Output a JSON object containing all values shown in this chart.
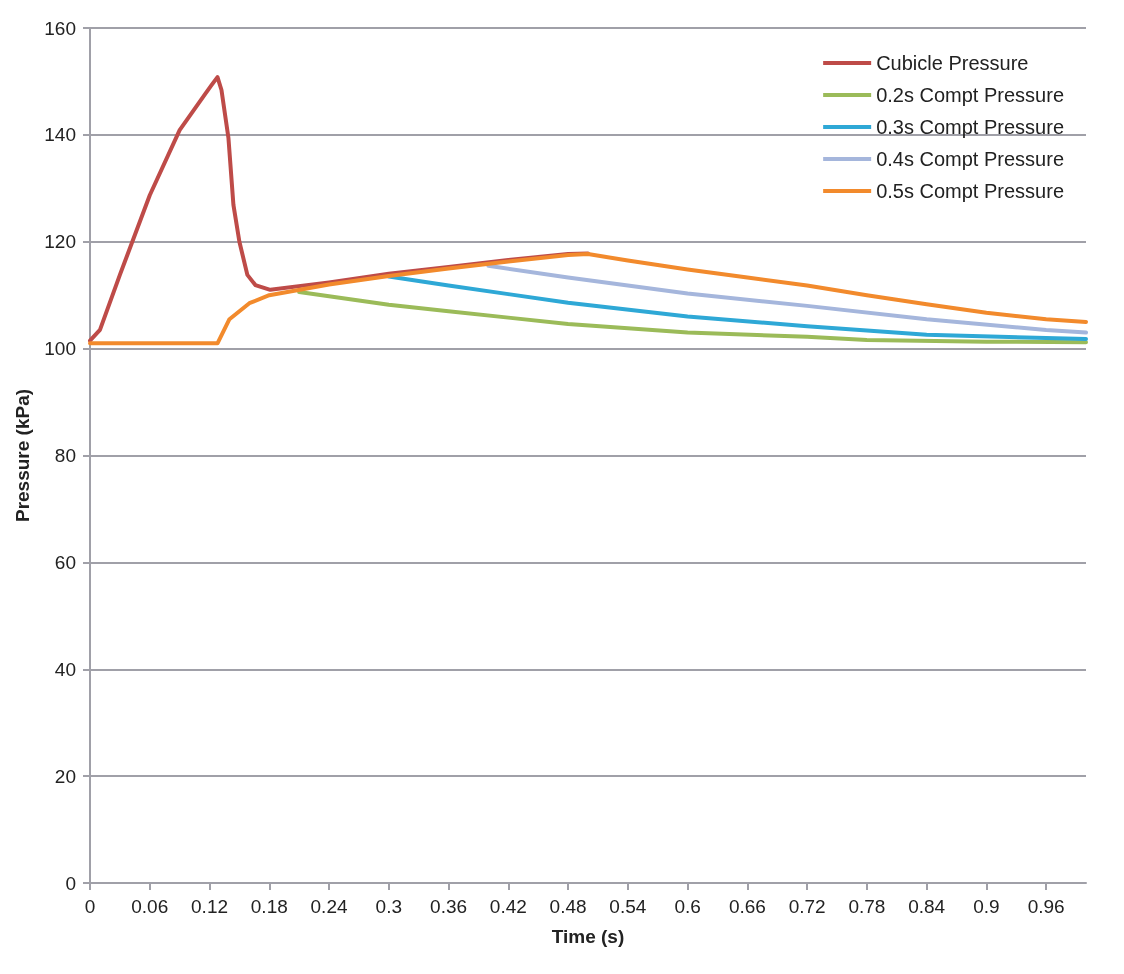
{
  "chart_data": {
    "type": "line",
    "xlabel": "Time (s)",
    "ylabel": "Pressure (kPa)",
    "xlim": [
      0,
      1
    ],
    "xticks": [
      0,
      0.06,
      0.12,
      0.18,
      0.24,
      0.3,
      0.36,
      0.42,
      0.48,
      0.54,
      0.6,
      0.66,
      0.72,
      0.78,
      0.84,
      0.9,
      0.96
    ],
    "ylim": [
      0,
      160
    ],
    "yticks": [
      0,
      20,
      40,
      60,
      80,
      100,
      120,
      140,
      160
    ],
    "grid": "y",
    "legend": "top right",
    "marker": "none",
    "line_style": "solid",
    "series": [
      {
        "name": "Cubicle Pressure",
        "color": "#be4b48",
        "x": [
          0,
          0.01,
          0.03,
          0.06,
          0.09,
          0.115,
          0.122,
          0.128,
          0.132,
          0.139,
          0.144,
          0.15,
          0.158,
          0.166,
          0.181,
          0.24,
          0.3,
          0.36,
          0.42,
          0.48,
          0.5
        ],
        "values": [
          101.5,
          103.5,
          113.8,
          128.7,
          140.9,
          147.5,
          149.3,
          150.8,
          148.4,
          139.4,
          126.9,
          120,
          113.8,
          111.9,
          111,
          112.4,
          114,
          115.3,
          116.6,
          117.7,
          117.8
        ]
      },
      {
        "name": "0.2s Compt Pressure",
        "color": "#9bbb59",
        "x": [
          0.21,
          0.24,
          0.3,
          0.36,
          0.42,
          0.48,
          0.6,
          0.72,
          0.78,
          0.9,
          1.0
        ],
        "values": [
          110.6,
          109.8,
          108.2,
          107,
          105.8,
          104.6,
          103,
          102.2,
          101.6,
          101.3,
          101.2
        ]
      },
      {
        "name": "0.3s Compt Pressure",
        "color": "#2ea8d6",
        "x": [
          0.3,
          0.36,
          0.42,
          0.48,
          0.6,
          0.72,
          0.84,
          1.0
        ],
        "values": [
          113.5,
          111.8,
          110.2,
          108.6,
          106,
          104.2,
          102.6,
          101.8
        ]
      },
      {
        "name": "0.4s Compt Pressure",
        "color": "#a5b6dc",
        "x": [
          0.4,
          0.48,
          0.6,
          0.72,
          0.84,
          0.96,
          1.0
        ],
        "values": [
          115.5,
          113.3,
          110.3,
          108,
          105.5,
          103.5,
          103
        ]
      },
      {
        "name": "0.5s Compt Pressure",
        "color": "#f28a2c",
        "x": [
          0,
          0.128,
          0.14,
          0.16,
          0.18,
          0.24,
          0.3,
          0.36,
          0.42,
          0.48,
          0.5,
          0.54,
          0.6,
          0.66,
          0.72,
          0.78,
          0.84,
          0.9,
          0.96,
          1.0
        ],
        "values": [
          101,
          101,
          105.5,
          108.5,
          110,
          112,
          113.6,
          115,
          116.3,
          117.5,
          117.7,
          116.5,
          114.8,
          113.3,
          111.8,
          110,
          108.3,
          106.7,
          105.5,
          105
        ]
      }
    ]
  }
}
